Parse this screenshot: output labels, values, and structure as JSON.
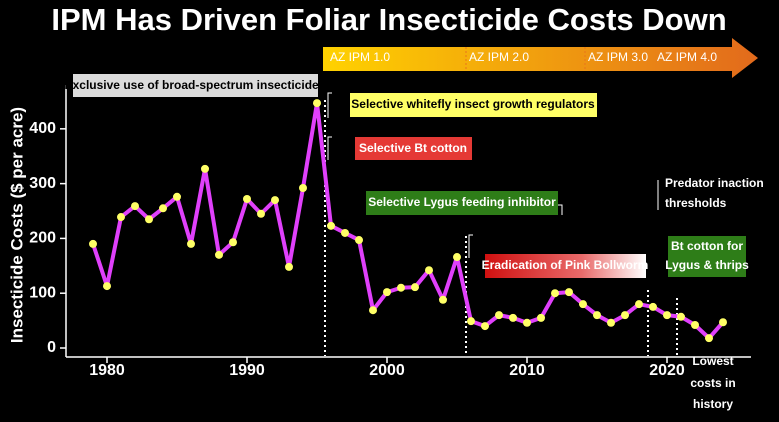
{
  "chart_data": {
    "type": "line",
    "title": "IPM Has Driven Foliar Insecticide Costs Down",
    "y_label": "Insecticide Costs ($ per acre)",
    "x": [
      1979,
      1980,
      1981,
      1982,
      1983,
      1984,
      1985,
      1986,
      1987,
      1988,
      1989,
      1990,
      1991,
      1992,
      1993,
      1994,
      1995,
      1996,
      1997,
      1998,
      1999,
      2000,
      2001,
      2002,
      2003,
      2004,
      2005,
      2006,
      2007,
      2008,
      2009,
      2010,
      2011,
      2012,
      2013,
      2014,
      2015,
      2016,
      2017,
      2018,
      2019,
      2020,
      2021,
      2022,
      2023,
      2024
    ],
    "values": [
      190,
      113,
      239,
      259,
      235,
      255,
      276,
      190,
      327,
      170,
      193,
      272,
      245,
      270,
      148,
      292,
      447,
      223,
      210,
      197,
      69,
      102,
      110,
      111,
      142,
      88,
      166,
      49,
      40,
      60,
      55,
      46,
      55,
      100,
      102,
      80,
      60,
      46,
      60,
      80,
      75,
      60,
      57,
      42,
      18,
      47
    ],
    "color": "#e040fb",
    "marker_color": "#ffff66",
    "xlim": [
      1977,
      2026
    ],
    "xticks": [
      1980,
      1990,
      2000,
      2010,
      2020
    ],
    "ylim": [
      0,
      480
    ],
    "yticks": [
      0,
      100,
      200,
      300,
      400
    ],
    "ipm_phases": [
      "AZ IPM 1.0",
      "AZ IPM 2.0",
      "AZ IPM 3.0",
      "AZ IPM 4.0"
    ],
    "annotations": [
      "Exclusive use of broad-spectrum insecticides",
      "Selective whitefly insect growth regulators",
      "Selective Bt cotton",
      "Selective Lygus feeding inhibitor",
      "Eradication of Pink Bollworm",
      [
        "Predator inaction",
        "thresholds"
      ],
      [
        "Bt cotton for",
        "Lygus & thrips"
      ],
      [
        "Lowest",
        "costs in",
        "history"
      ]
    ]
  }
}
